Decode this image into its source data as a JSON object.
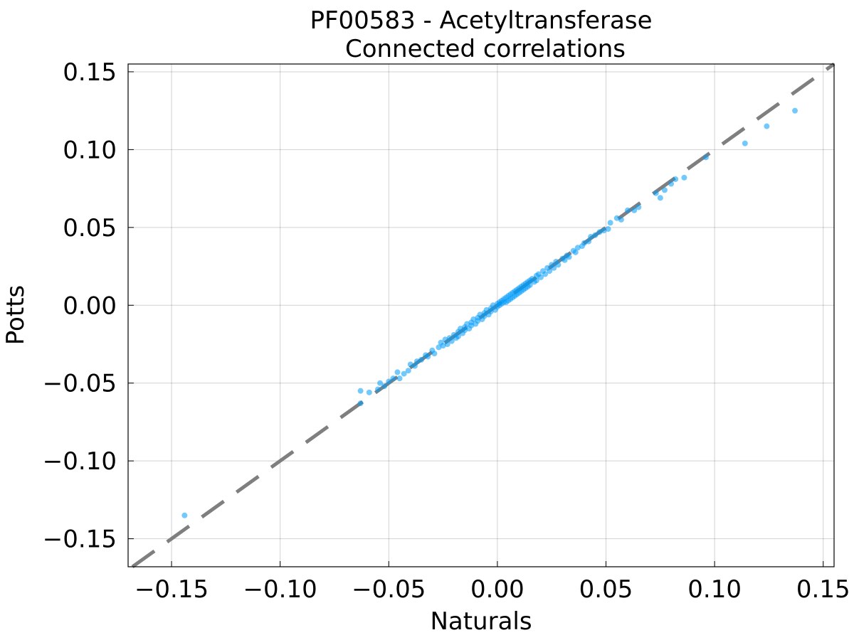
{
  "chart_data": {
    "type": "scatter",
    "title": "PF00583 - Acetyltransferase",
    "subtitle": "Connected correlations",
    "xlabel": "Naturals",
    "ylabel": "Potts",
    "xlim": [
      -0.17,
      0.155
    ],
    "ylim": [
      -0.168,
      0.155
    ],
    "grid": true,
    "xticks": [
      -0.15,
      -0.1,
      -0.05,
      0.0,
      0.05,
      0.1,
      0.15
    ],
    "xtick_labels": [
      "−0.15",
      "−0.10",
      "−0.05",
      "0.00",
      "0.05",
      "0.10",
      "0.15"
    ],
    "yticks": [
      -0.15,
      -0.1,
      -0.05,
      0.0,
      0.05,
      0.1,
      0.15
    ],
    "ytick_labels": [
      "−0.15",
      "−0.10",
      "−0.05",
      "0.00",
      "0.05",
      "0.10",
      "0.15"
    ],
    "reference_line": {
      "style": "dashed",
      "color": "#7f7f7f",
      "slope": 1,
      "intercept": 0
    },
    "series": [
      {
        "color": "#009af9",
        "points": [
          [
            -0.144,
            -0.135
          ],
          [
            -0.063,
            -0.063
          ],
          [
            -0.063,
            -0.055
          ],
          [
            -0.059,
            -0.056
          ],
          [
            -0.055,
            -0.054
          ],
          [
            -0.054,
            -0.05
          ],
          [
            -0.052,
            -0.052
          ],
          [
            -0.05,
            -0.049
          ],
          [
            -0.048,
            -0.047
          ],
          [
            -0.046,
            -0.043
          ],
          [
            -0.045,
            -0.047
          ],
          [
            -0.043,
            -0.044
          ],
          [
            -0.041,
            -0.042
          ],
          [
            -0.04,
            -0.038
          ],
          [
            -0.038,
            -0.039
          ],
          [
            -0.037,
            -0.036
          ],
          [
            -0.035,
            -0.035
          ],
          [
            -0.033,
            -0.032
          ],
          [
            -0.032,
            -0.033
          ],
          [
            -0.03,
            -0.029
          ],
          [
            -0.029,
            -0.031
          ],
          [
            -0.027,
            -0.027
          ],
          [
            -0.026,
            -0.024
          ],
          [
            -0.025,
            -0.026
          ],
          [
            -0.024,
            -0.022
          ],
          [
            -0.023,
            -0.025
          ],
          [
            -0.022,
            -0.021
          ],
          [
            -0.021,
            -0.023
          ],
          [
            -0.02,
            -0.019
          ],
          [
            -0.019,
            -0.021
          ],
          [
            -0.018,
            -0.017
          ],
          [
            -0.018,
            -0.02
          ],
          [
            -0.017,
            -0.015
          ],
          [
            -0.016,
            -0.018
          ],
          [
            -0.015,
            -0.014
          ],
          [
            -0.015,
            -0.016
          ],
          [
            -0.014,
            -0.012
          ],
          [
            -0.013,
            -0.015
          ],
          [
            -0.012,
            -0.011
          ],
          [
            -0.012,
            -0.013
          ],
          [
            -0.011,
            -0.009
          ],
          [
            -0.01,
            -0.012
          ],
          [
            -0.009,
            -0.008
          ],
          [
            -0.009,
            -0.01
          ],
          [
            -0.008,
            -0.006
          ],
          [
            -0.007,
            -0.009
          ],
          [
            -0.006,
            -0.005
          ],
          [
            -0.006,
            -0.007
          ],
          [
            -0.005,
            -0.003
          ],
          [
            -0.004,
            -0.006
          ],
          [
            -0.003,
            -0.002
          ],
          [
            -0.003,
            -0.004
          ],
          [
            -0.002,
            0.0
          ],
          [
            -0.001,
            -0.003
          ],
          [
            0.0,
            0.001
          ],
          [
            0.0,
            -0.001
          ],
          [
            0.001,
            0.002
          ],
          [
            0.001,
            0.0
          ],
          [
            0.002,
            0.003
          ],
          [
            0.002,
            0.001
          ],
          [
            0.003,
            0.004
          ],
          [
            0.003,
            0.002
          ],
          [
            0.004,
            0.005
          ],
          [
            0.004,
            0.002
          ],
          [
            0.005,
            0.006
          ],
          [
            0.005,
            0.003
          ],
          [
            0.006,
            0.007
          ],
          [
            0.006,
            0.004
          ],
          [
            0.007,
            0.008
          ],
          [
            0.007,
            0.005
          ],
          [
            0.008,
            0.009
          ],
          [
            0.008,
            0.006
          ],
          [
            0.009,
            0.01
          ],
          [
            0.009,
            0.007
          ],
          [
            0.01,
            0.011
          ],
          [
            0.01,
            0.008
          ],
          [
            0.011,
            0.012
          ],
          [
            0.011,
            0.009
          ],
          [
            0.012,
            0.013
          ],
          [
            0.012,
            0.01
          ],
          [
            0.013,
            0.014
          ],
          [
            0.013,
            0.011
          ],
          [
            0.014,
            0.015
          ],
          [
            0.014,
            0.012
          ],
          [
            0.015,
            0.016
          ],
          [
            0.015,
            0.013
          ],
          [
            0.016,
            0.017
          ],
          [
            0.017,
            0.015
          ],
          [
            0.018,
            0.019
          ],
          [
            0.018,
            0.016
          ],
          [
            0.019,
            0.02
          ],
          [
            0.02,
            0.018
          ],
          [
            0.021,
            0.022
          ],
          [
            0.022,
            0.02
          ],
          [
            0.023,
            0.024
          ],
          [
            0.024,
            0.022
          ],
          [
            0.025,
            0.026
          ],
          [
            0.026,
            0.024
          ],
          [
            0.027,
            0.028
          ],
          [
            0.028,
            0.026
          ],
          [
            0.03,
            0.03
          ],
          [
            0.031,
            0.029
          ],
          [
            0.032,
            0.032
          ],
          [
            0.033,
            0.031
          ],
          [
            0.035,
            0.035
          ],
          [
            0.036,
            0.034
          ],
          [
            0.037,
            0.037
          ],
          [
            0.039,
            0.038
          ],
          [
            0.04,
            0.04
          ],
          [
            0.042,
            0.041
          ],
          [
            0.043,
            0.044
          ],
          [
            0.045,
            0.045
          ],
          [
            0.047,
            0.047
          ],
          [
            0.049,
            0.048
          ],
          [
            0.051,
            0.049
          ],
          [
            0.052,
            0.053
          ],
          [
            0.055,
            0.056
          ],
          [
            0.057,
            0.055
          ],
          [
            0.06,
            0.061
          ],
          [
            0.063,
            0.061
          ],
          [
            0.065,
            0.063
          ],
          [
            0.073,
            0.072
          ],
          [
            0.075,
            0.069
          ],
          [
            0.077,
            0.074
          ],
          [
            0.08,
            0.078
          ],
          [
            0.082,
            0.081
          ],
          [
            0.086,
            0.082
          ],
          [
            0.096,
            0.095
          ],
          [
            0.114,
            0.104
          ],
          [
            0.124,
            0.115
          ],
          [
            0.137,
            0.125
          ]
        ]
      }
    ]
  }
}
